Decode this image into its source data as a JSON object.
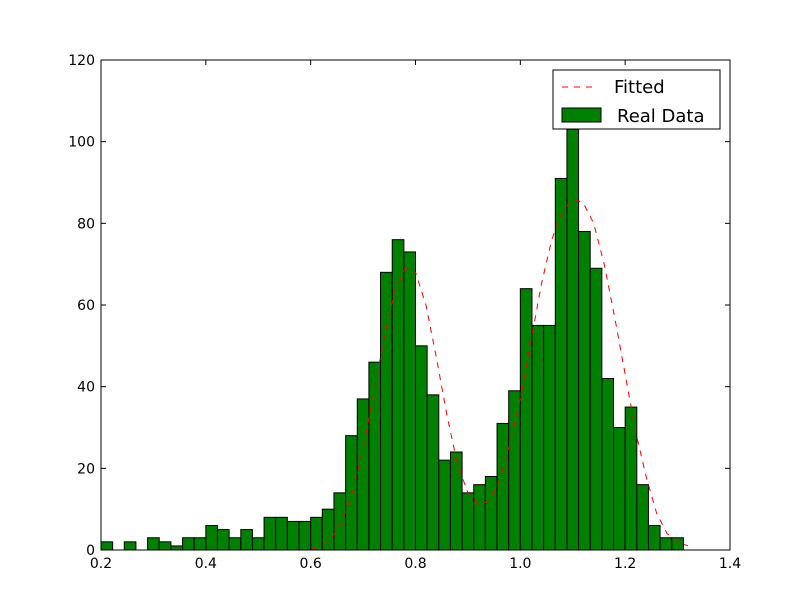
{
  "chart_data": {
    "type": "bar",
    "title": "",
    "xlabel": "",
    "ylabel": "",
    "xlim": [
      0.2,
      1.4
    ],
    "ylim": [
      0,
      120
    ],
    "xticks": [
      0.2,
      0.4,
      0.6,
      0.8,
      1.0,
      1.2,
      1.4
    ],
    "xtick_labels": [
      "0.2",
      "0.4",
      "0.6",
      "0.8",
      "1.0",
      "1.2",
      "1.4"
    ],
    "yticks": [
      0,
      20,
      40,
      60,
      80,
      100,
      120
    ],
    "ytick_labels": [
      "0",
      "20",
      "40",
      "60",
      "80",
      "100",
      "120"
    ],
    "grid": false,
    "legend": {
      "position": "top-right",
      "entries": [
        {
          "label": "Fitted",
          "style": "dashed-line",
          "color": "#ff0000"
        },
        {
          "label": "Real Data",
          "style": "patch",
          "color": "#008000"
        }
      ]
    },
    "series": [
      {
        "name": "Real Data",
        "kind": "histogram",
        "color": "#008000",
        "edgecolor": "#000000",
        "bin_width": 0.0222,
        "bin_starts": [
          0.2,
          0.2222,
          0.2444,
          0.2667,
          0.2889,
          0.3111,
          0.3333,
          0.3556,
          0.3778,
          0.4,
          0.4222,
          0.4444,
          0.4667,
          0.4889,
          0.5111,
          0.5333,
          0.5556,
          0.5778,
          0.6,
          0.6222,
          0.6444,
          0.6667,
          0.6889,
          0.7111,
          0.7333,
          0.7556,
          0.7778,
          0.8,
          0.8222,
          0.8444,
          0.8667,
          0.8889,
          0.9111,
          0.9333,
          0.9556,
          0.9778,
          1.0,
          1.0222,
          1.0444,
          1.0667,
          1.0889,
          1.1111,
          1.1333,
          1.1556,
          1.1778,
          1.2,
          1.2222,
          1.2444,
          1.2667,
          1.2889,
          1.3111
        ],
        "values": [
          2,
          0,
          2,
          0,
          3,
          2,
          1,
          3,
          3,
          6,
          5,
          3,
          5,
          3,
          8,
          8,
          7,
          7,
          8,
          10,
          14,
          28,
          37,
          46,
          68,
          76,
          73,
          50,
          38,
          22,
          24,
          14,
          16,
          18,
          31,
          39,
          64,
          55,
          55,
          91,
          103,
          78,
          69,
          42,
          30,
          35,
          16,
          6,
          3,
          3,
          0
        ]
      },
      {
        "name": "Fitted",
        "kind": "line",
        "style": "dashed",
        "color": "#ff0000",
        "x": [
          0.58,
          0.6,
          0.62,
          0.64,
          0.66,
          0.68,
          0.7,
          0.72,
          0.74,
          0.76,
          0.78,
          0.8,
          0.82,
          0.84,
          0.86,
          0.88,
          0.9,
          0.92,
          0.94,
          0.96,
          0.98,
          1.0,
          1.02,
          1.04,
          1.06,
          1.08,
          1.1,
          1.12,
          1.14,
          1.16,
          1.18,
          1.2,
          1.22,
          1.24,
          1.26,
          1.28,
          1.3,
          1.32
        ],
        "y": [
          0,
          0,
          1,
          3,
          7,
          14,
          25,
          38,
          52,
          63,
          69,
          68,
          60,
          47,
          33,
          21,
          14,
          11,
          12,
          17,
          26,
          37,
          51,
          65,
          76,
          83,
          86,
          85,
          80,
          70,
          57,
          43,
          29,
          18,
          9,
          4,
          2,
          1
        ]
      }
    ]
  }
}
